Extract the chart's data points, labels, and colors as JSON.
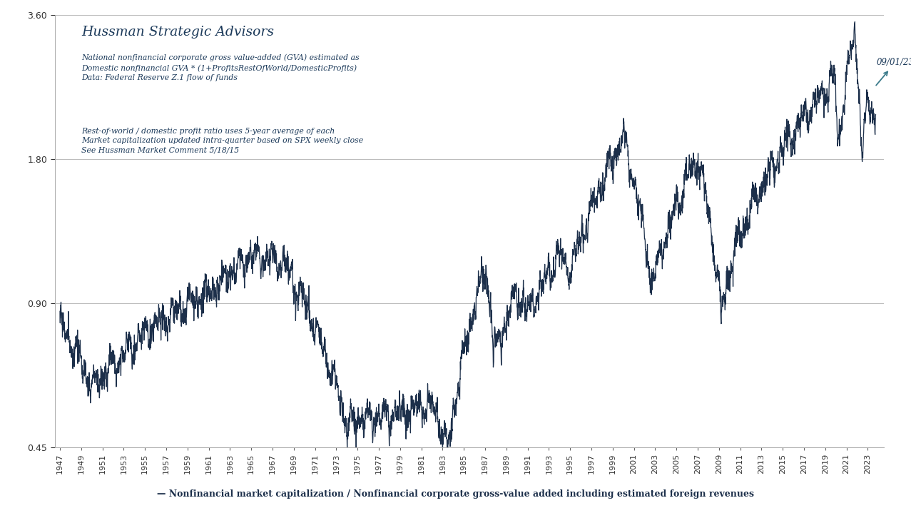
{
  "title": "Hussman Strategic Advisors",
  "annotation_lines_1": [
    "National nonfinancial corporate gross value-added (GVA) estimated as",
    "Domestic nonfinancial GVA * (1+ProfitsRestOfWorld/DomesticProfits)",
    "Data: Federal Reserve Z.1 flow of funds"
  ],
  "annotation_lines_2": [
    "Rest-of-world / domestic profit ratio uses 5-year average of each",
    "Market capitalization updated intra-quarter based on SPX weekly close",
    "See Hussman Market Comment 5/18/15"
  ],
  "xlabel_bottom": "— Nonfinancial market capitalization / Nonfinancial corporate gross-value added including estimated foreign revenues",
  "line_color": "#1c2f4a",
  "annotation_color": "#1c3a5a",
  "title_color": "#1c3a5a",
  "background_color": "#ffffff",
  "ylim": [
    0.45,
    3.6
  ],
  "yticks": [
    0.45,
    0.9,
    1.8,
    3.6
  ],
  "xstart": 1947,
  "xend": 2024,
  "xtick_step": 2,
  "label_annotation": "09/01/23",
  "arrow_color": "#3a7a8a",
  "grid_color": "#bbbbbb",
  "line_width": 0.9
}
